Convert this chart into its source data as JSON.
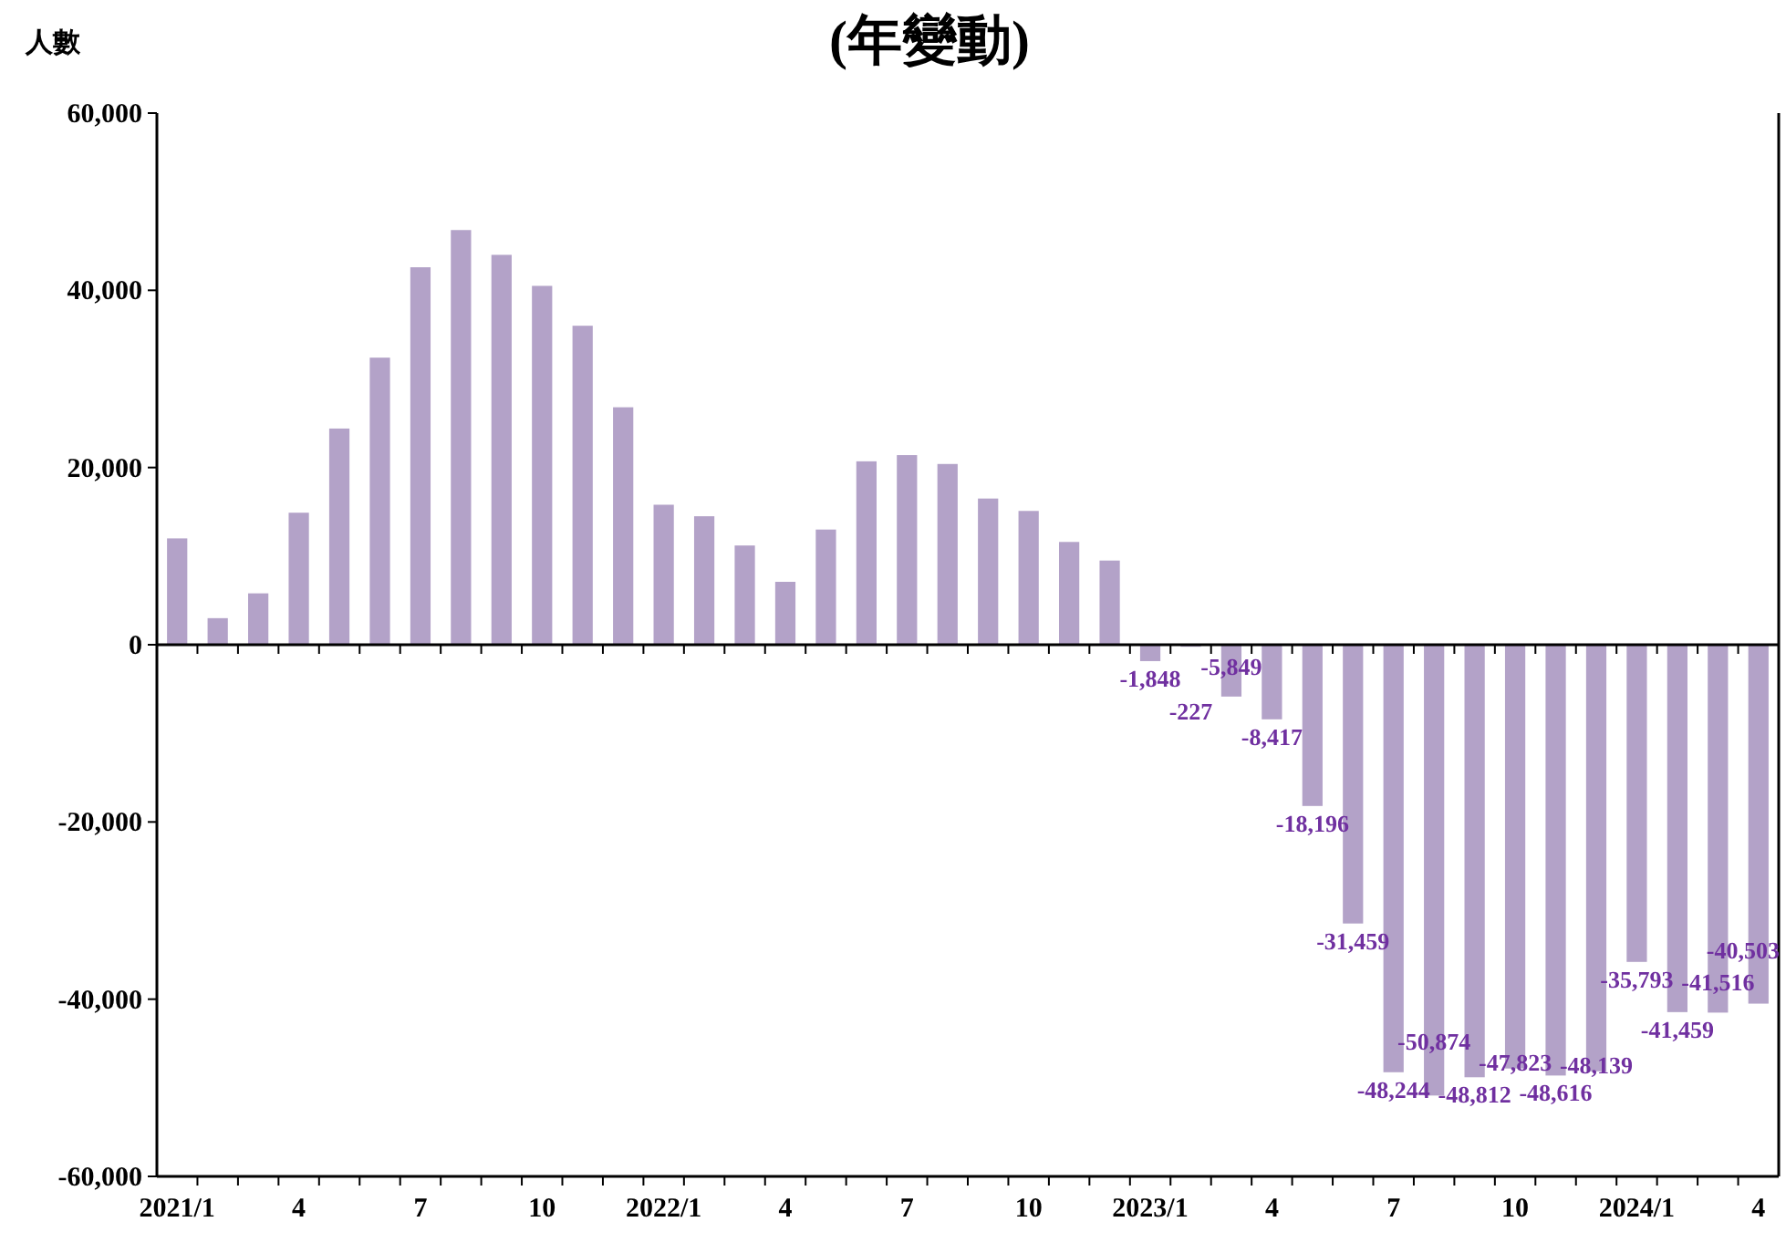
{
  "chart_data": {
    "type": "bar",
    "title": "(年變動)",
    "ylabel": "人數",
    "categories": [
      "2021/1",
      null,
      null,
      "4",
      null,
      null,
      "7",
      null,
      null,
      "10",
      null,
      null,
      "2022/1",
      null,
      null,
      "4",
      null,
      null,
      "7",
      null,
      null,
      "10",
      null,
      null,
      "2023/1",
      null,
      null,
      "4",
      null,
      null,
      "7",
      null,
      null,
      "10",
      null,
      null,
      "2024/1",
      null,
      null,
      "4"
    ],
    "values": [
      12000,
      3000,
      5800,
      14900,
      24400,
      32400,
      42600,
      46800,
      44000,
      40500,
      36000,
      26800,
      15800,
      14500,
      11200,
      7100,
      13000,
      20700,
      21400,
      20400,
      16500,
      15100,
      11600,
      9500,
      -1848,
      -227,
      -5849,
      -8417,
      -18196,
      -31459,
      -48244,
      -50874,
      -48812,
      -47823,
      -48616,
      -48139,
      -35793,
      -41459,
      -41516,
      -40503
    ],
    "value_labels": [
      null,
      null,
      null,
      null,
      null,
      null,
      null,
      null,
      null,
      null,
      null,
      null,
      null,
      null,
      null,
      null,
      null,
      null,
      null,
      null,
      null,
      null,
      null,
      null,
      "-1,848",
      "-227",
      "-5,849",
      "-8,417",
      "-18,196",
      "-31,459",
      "-48,244",
      "-50,874",
      "-48,812",
      "-47,823",
      "-48,616",
      "-48,139",
      "-35,793",
      "-41,459",
      "-41,516",
      "-40,503"
    ],
    "color": "#b3a2c8",
    "ylim": [
      -60000,
      60000
    ],
    "yticks": [
      {
        "value": -60000,
        "label": "-60,000"
      },
      {
        "value": -40000,
        "label": "-40,000"
      },
      {
        "value": -20000,
        "label": "-20,000"
      },
      {
        "value": 0,
        "label": "0"
      },
      {
        "value": 20000,
        "label": "20,000"
      },
      {
        "value": 40000,
        "label": "40,000"
      },
      {
        "value": 60000,
        "label": "60,000"
      }
    ],
    "legend": false
  }
}
